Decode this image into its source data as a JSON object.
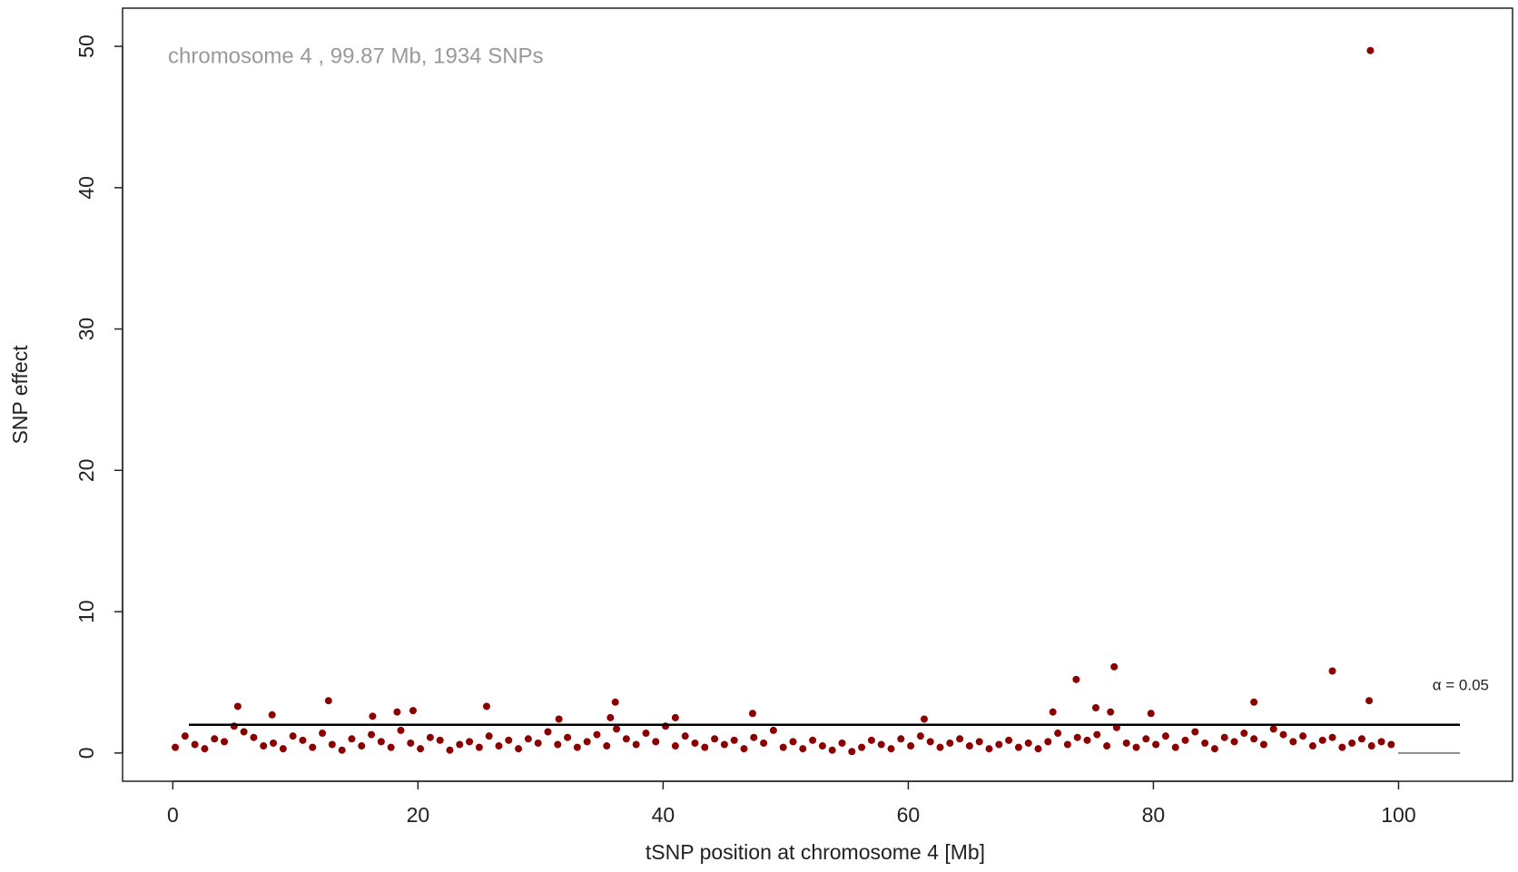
{
  "chart_data": {
    "type": "scatter",
    "annotation": "chromosome  4 ,  99.87  Mb,  1934  SNPs",
    "x_label": "tSNP position at chromosome  4  [Mb]",
    "y_label": "SNP effect",
    "color": "#8b0000",
    "threshold": {
      "value": 2,
      "label": "α = 0.05"
    },
    "xlim": [
      -4.1,
      109.3
    ],
    "ylim": [
      -2,
      52.7
    ],
    "xticks": [
      0,
      20,
      40,
      60,
      80,
      100
    ],
    "yticks": [
      0,
      10,
      20,
      30,
      40,
      50
    ],
    "x": [
      0.2,
      1.0,
      1.8,
      2.6,
      3.4,
      4.2,
      5.0,
      5.8,
      6.6,
      7.4,
      8.2,
      9.0,
      9.8,
      10.6,
      11.4,
      12.2,
      13.0,
      13.8,
      14.6,
      15.4,
      16.2,
      17.0,
      17.8,
      18.6,
      19.4,
      20.2,
      21.0,
      21.8,
      22.6,
      23.4,
      24.2,
      25.0,
      25.8,
      26.6,
      27.4,
      28.2,
      29.0,
      29.8,
      30.6,
      31.4,
      32.2,
      33.0,
      33.8,
      34.6,
      35.4,
      36.2,
      37.0,
      37.8,
      38.6,
      39.4,
      40.2,
      41.0,
      41.8,
      42.6,
      43.4,
      44.2,
      45.0,
      45.8,
      46.6,
      47.4,
      48.2,
      49.0,
      49.8,
      50.6,
      51.4,
      52.2,
      53.0,
      53.8,
      54.6,
      55.4,
      56.2,
      57.0,
      57.8,
      58.6,
      59.4,
      60.2,
      61.0,
      61.8,
      62.6,
      63.4,
      64.2,
      65.0,
      65.8,
      66.6,
      67.4,
      68.2,
      69.0,
      69.8,
      70.6,
      71.4,
      72.2,
      73.0,
      73.8,
      74.6,
      75.4,
      76.2,
      77.0,
      77.8,
      78.6,
      79.4,
      80.2,
      81.0,
      81.8,
      82.6,
      83.4,
      84.2,
      85.0,
      85.8,
      86.6,
      87.4,
      88.2,
      89.0,
      89.8,
      90.6,
      91.4,
      92.2,
      93.0,
      93.8,
      94.6,
      95.4,
      96.2,
      97.0,
      97.8,
      98.6,
      99.4,
      5.3,
      12.7,
      16.3,
      18.3,
      19.6,
      25.6,
      36.1,
      35.7,
      47.3,
      41.0,
      73.7,
      76.8,
      75.3,
      76.5,
      88.2,
      94.6,
      97.7,
      97.6,
      79.8,
      71.8,
      31.5,
      61.3,
      8.1
    ],
    "values": [
      0.4,
      1.2,
      0.6,
      0.3,
      1.0,
      0.8,
      1.9,
      1.5,
      1.1,
      0.5,
      0.7,
      0.3,
      1.2,
      0.9,
      0.4,
      1.4,
      0.6,
      0.2,
      1.0,
      0.5,
      1.3,
      0.8,
      0.4,
      1.6,
      0.7,
      0.3,
      1.1,
      0.9,
      0.2,
      0.6,
      0.8,
      0.4,
      1.2,
      0.5,
      0.9,
      0.3,
      1.0,
      0.7,
      1.5,
      0.6,
      1.1,
      0.4,
      0.8,
      1.3,
      0.5,
      1.7,
      1.0,
      0.6,
      1.4,
      0.8,
      1.9,
      0.5,
      1.2,
      0.7,
      0.4,
      1.0,
      0.6,
      0.9,
      0.3,
      1.1,
      0.7,
      1.6,
      0.4,
      0.8,
      0.3,
      0.9,
      0.5,
      0.2,
      0.7,
      0.1,
      0.4,
      0.9,
      0.6,
      0.3,
      1.0,
      0.5,
      1.2,
      0.8,
      0.4,
      0.7,
      1.0,
      0.5,
      0.8,
      0.3,
      0.6,
      0.9,
      0.4,
      0.7,
      0.3,
      0.8,
      1.4,
      0.6,
      1.1,
      0.9,
      1.3,
      0.5,
      1.8,
      0.7,
      0.4,
      1.0,
      0.6,
      1.2,
      0.4,
      0.9,
      1.5,
      0.7,
      0.3,
      1.1,
      0.8,
      1.4,
      1.0,
      0.6,
      1.7,
      1.3,
      0.8,
      1.2,
      0.5,
      0.9,
      1.1,
      0.4,
      0.7,
      1.0,
      0.5,
      0.8,
      0.6,
      3.3,
      3.7,
      2.6,
      2.9,
      3.0,
      3.3,
      3.6,
      2.5,
      2.8,
      2.5,
      5.2,
      6.1,
      3.2,
      2.9,
      3.6,
      5.8,
      49.7,
      3.7,
      2.8,
      2.9,
      2.4,
      2.4,
      2.7
    ]
  }
}
